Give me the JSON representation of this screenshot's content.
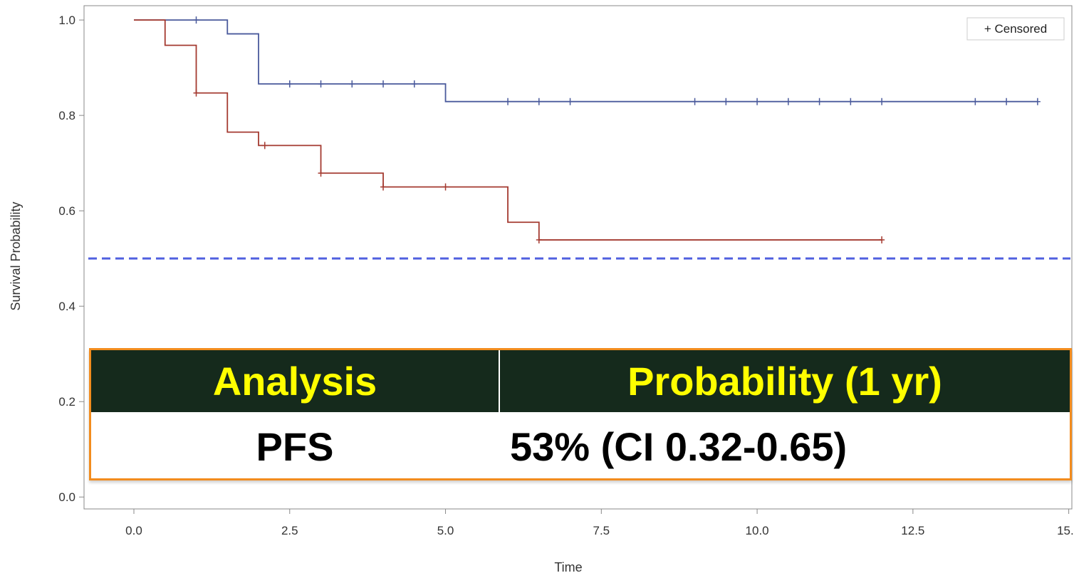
{
  "chart_data": {
    "type": "line",
    "subtype": "kaplan-meier-step",
    "xlabel": "Time",
    "ylabel": "Survival Probability",
    "xlim": [
      -0.8,
      15.05
    ],
    "ylim": [
      -0.025,
      1.03
    ],
    "x_ticks": [
      "0.0",
      "2.5",
      "5.0",
      "7.5",
      "10.0",
      "12.5",
      "15.0"
    ],
    "x_tick_values": [
      0,
      2.5,
      5,
      7.5,
      10,
      12.5,
      15
    ],
    "y_ticks": [
      "0.0",
      "0.2",
      "0.4",
      "0.6",
      "0.8",
      "1.0"
    ],
    "y_tick_values": [
      0,
      0.2,
      0.4,
      0.6,
      0.8,
      1.0
    ],
    "legend": {
      "label": "+ Censored",
      "placement": "top-right"
    },
    "reference_line": {
      "y": 0.5,
      "style": "dashed",
      "color": "#5060e0"
    },
    "series": [
      {
        "color": "#4a5a9c",
        "steps": [
          [
            0,
            1.0
          ],
          [
            1.5,
            0.971
          ],
          [
            2.0,
            0.866
          ],
          [
            5.0,
            0.829
          ],
          [
            14.5,
            0.829
          ]
        ],
        "censored": [
          [
            1.0,
            1.0
          ],
          [
            2.5,
            0.866
          ],
          [
            3.0,
            0.866
          ],
          [
            3.5,
            0.866
          ],
          [
            4.0,
            0.866
          ],
          [
            4.5,
            0.866
          ],
          [
            6.0,
            0.829
          ],
          [
            6.5,
            0.829
          ],
          [
            7.0,
            0.829
          ],
          [
            9.0,
            0.829
          ],
          [
            9.5,
            0.829
          ],
          [
            10.0,
            0.829
          ],
          [
            10.5,
            0.829
          ],
          [
            11.0,
            0.829
          ],
          [
            11.5,
            0.829
          ],
          [
            12.0,
            0.829
          ],
          [
            13.5,
            0.829
          ],
          [
            14.0,
            0.829
          ],
          [
            14.5,
            0.829
          ]
        ]
      },
      {
        "color": "#a43a30",
        "steps": [
          [
            0,
            1.0
          ],
          [
            0.5,
            0.947
          ],
          [
            1.0,
            0.847
          ],
          [
            1.5,
            0.765
          ],
          [
            2.0,
            0.737
          ],
          [
            3.0,
            0.679
          ],
          [
            4.0,
            0.65
          ],
          [
            6.0,
            0.576
          ],
          [
            6.5,
            0.539
          ],
          [
            12.0,
            0.539
          ]
        ],
        "censored": [
          [
            1.0,
            0.847
          ],
          [
            2.1,
            0.737
          ],
          [
            3.0,
            0.679
          ],
          [
            4.0,
            0.65
          ],
          [
            5.0,
            0.65
          ],
          [
            6.5,
            0.539
          ],
          [
            12.0,
            0.539
          ]
        ]
      }
    ]
  },
  "table": {
    "headers": [
      "Analysis",
      "Probability (1 yr)"
    ],
    "row": [
      "PFS",
      "53% (CI 0.32-0.65)"
    ],
    "header_bg": "#152a1c",
    "header_text_color": "#ffff00",
    "border_color": "#f28c1e"
  }
}
